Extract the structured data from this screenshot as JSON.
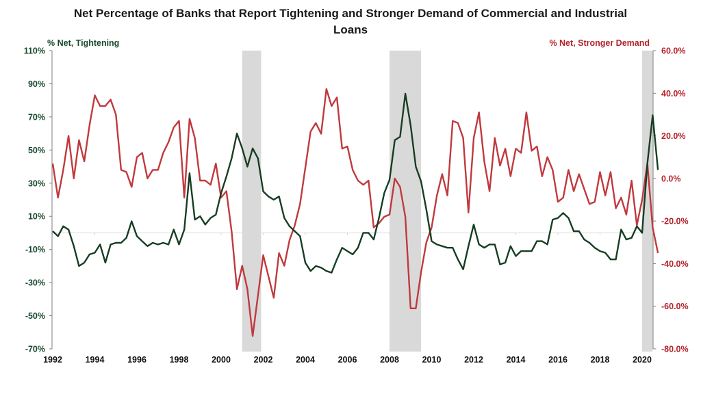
{
  "chart_data": {
    "type": "line",
    "title_lines": [
      "Net Percentage of Banks that Report Tightening and Stronger Demand of Commercial and Industrial",
      "Loans"
    ],
    "y_left": {
      "label": "% Net, Tightening",
      "range": [
        -70,
        110
      ],
      "ticks": [
        110,
        90,
        70,
        50,
        30,
        10,
        -10,
        -30,
        -50,
        -70
      ],
      "tick_labels": [
        "110%",
        "90%",
        "70%",
        "50%",
        "30%",
        "10%",
        "-10%",
        "-30%",
        "-50%",
        "-70%"
      ],
      "color": "#174a2e"
    },
    "y_right": {
      "label": "% Net, Stronger Demand",
      "range": [
        -80,
        60
      ],
      "ticks": [
        60,
        40,
        20,
        0,
        -20,
        -40,
        -60,
        -80
      ],
      "tick_labels": [
        "60.0%",
        "40.0%",
        "20.0%",
        "0.0%",
        "-20.0%",
        "-40.0%",
        "-60.0%",
        "-80.0%"
      ],
      "color": "#b5222a"
    },
    "x": {
      "range": [
        1992,
        2020.7
      ],
      "ticks": [
        1992,
        1994,
        1996,
        1998,
        2000,
        2002,
        2004,
        2006,
        2008,
        2010,
        2012,
        2014,
        2016,
        2018,
        2020
      ],
      "tick_labels": [
        "1992",
        "1994",
        "1996",
        "1998",
        "2000",
        "2002",
        "2004",
        "2006",
        "2008",
        "2010",
        "2012",
        "2014",
        "2016",
        "2018",
        "2020"
      ],
      "start": 1992,
      "frequency": "quarterly"
    },
    "recessions": [
      [
        2001.0,
        2001.9
      ],
      [
        2008.0,
        2009.5
      ],
      [
        2020.0,
        2020.5
      ]
    ],
    "zero_line_axis": "left",
    "grid": false,
    "series": [
      {
        "name": "% Net, Tightening",
        "axis": "left",
        "color": "#163d22",
        "values": [
          1,
          -2,
          4,
          2,
          -8,
          -20,
          -18,
          -13,
          -12,
          -7,
          -18,
          -7,
          -6,
          -6,
          -3,
          7,
          -2,
          -5,
          -8,
          -6,
          -7,
          -6,
          -7,
          2,
          -7,
          2,
          36,
          8,
          10,
          5,
          9,
          11,
          24,
          34,
          45,
          60,
          51,
          40,
          51,
          45,
          25,
          22,
          20,
          22,
          9,
          4,
          1,
          -2,
          -18,
          -23,
          -20,
          -21,
          -23,
          -24,
          -16,
          -9,
          -11,
          -13,
          -9,
          0,
          0,
          -4,
          9,
          24,
          32,
          56,
          58,
          84,
          65,
          40,
          31,
          14,
          -5,
          -7,
          -8,
          -9,
          -9,
          -16,
          -22,
          -8,
          5,
          -7,
          -9,
          -7,
          -7,
          -19,
          -18,
          -8,
          -14,
          -11,
          -11,
          -11,
          -5,
          -5,
          -7,
          8,
          9,
          12,
          9,
          1,
          1,
          -4,
          -6,
          -9,
          -11,
          -12,
          -16,
          -16,
          2,
          -4,
          -3,
          4,
          0,
          42,
          71,
          38
        ]
      },
      {
        "name": "% Net, Stronger Demand",
        "axis": "right",
        "color": "#c0393d",
        "values": [
          7,
          -9,
          4,
          20,
          0,
          18,
          8,
          25,
          39,
          34,
          34,
          37,
          30,
          4,
          3,
          -4,
          10,
          12,
          0,
          4,
          4,
          12,
          17,
          24,
          27,
          -9,
          28,
          19,
          -1,
          -1,
          -3,
          7,
          -9,
          -6,
          -25,
          -52,
          -41,
          -52,
          -74,
          -55,
          -36,
          -46,
          -56,
          -35,
          -41,
          -29,
          -22,
          -12,
          5,
          22,
          26,
          21,
          42,
          34,
          38,
          14,
          15,
          4,
          -1,
          -3,
          -1,
          -23,
          -21,
          -18,
          -17,
          0,
          -4,
          -18,
          -61,
          -61,
          -44,
          -30,
          -23,
          -8,
          2,
          -8,
          27,
          26,
          19,
          -16,
          19,
          31,
          8,
          -6,
          19,
          6,
          14,
          1,
          14,
          12,
          31,
          13,
          15,
          1,
          10,
          4,
          -11,
          -9,
          4,
          -6,
          2,
          -5,
          -12,
          -11,
          3,
          -8,
          3,
          -14,
          -9,
          -17,
          -1,
          -22,
          -10,
          7,
          -23,
          -35
        ]
      }
    ]
  }
}
